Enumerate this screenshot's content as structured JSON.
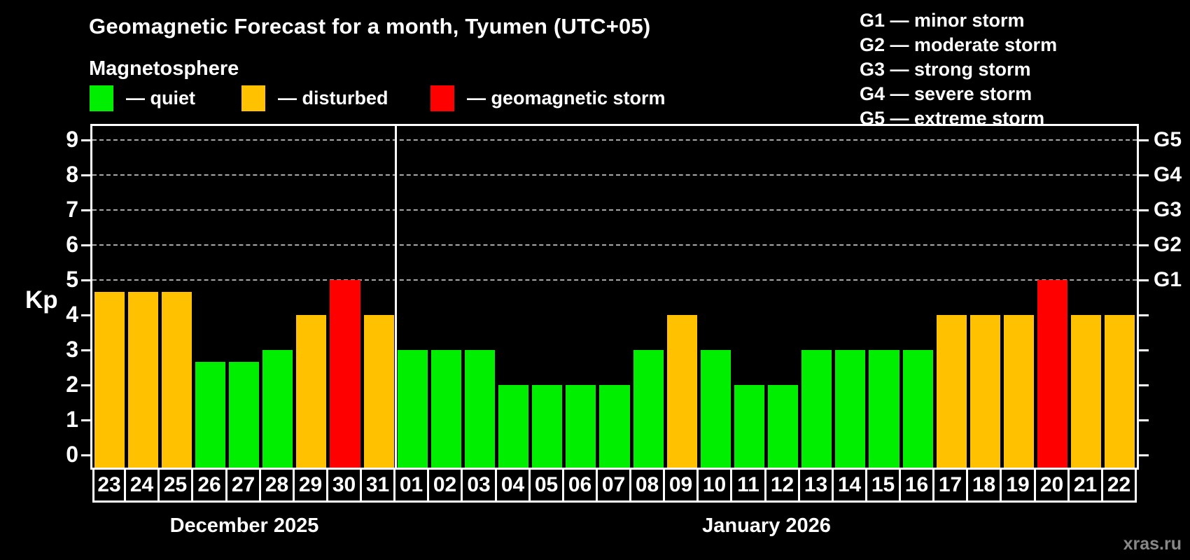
{
  "header": {
    "title": "Geomagnetic Forecast for a month, Tyumen (UTC+05)",
    "subtitle": "Magnetosphere"
  },
  "legend": {
    "items": [
      {
        "key": "quiet",
        "label": "— quiet",
        "color": "#00ee00"
      },
      {
        "key": "disturbed",
        "label": "— disturbed",
        "color": "#ffc100"
      },
      {
        "key": "storm",
        "label": "— geomagnetic storm",
        "color": "#ff0000"
      }
    ]
  },
  "storm_scale_legend": {
    "items": [
      "G1 — minor storm",
      "G2 — moderate storm",
      "G3 — strong storm",
      "G4 — severe storm",
      "G5 — extreme storm"
    ]
  },
  "watermark": "xras.ru",
  "chart_data": {
    "type": "bar",
    "ylabel": "Kp",
    "ylim": [
      0,
      9
    ],
    "y_ticks": [
      0,
      1,
      2,
      3,
      4,
      5,
      6,
      7,
      8,
      9
    ],
    "gridline_levels": [
      5,
      6,
      7,
      8,
      9
    ],
    "grid": "dashed",
    "right_axis": [
      {
        "level": 5,
        "label": "G1"
      },
      {
        "level": 6,
        "label": "G2"
      },
      {
        "level": 7,
        "label": "G3"
      },
      {
        "level": 8,
        "label": "G4"
      },
      {
        "level": 9,
        "label": "G5"
      }
    ],
    "status_colors": {
      "quiet": "#00ee00",
      "disturbed": "#ffc100",
      "storm": "#ff0000"
    },
    "months": [
      {
        "label": "December 2025",
        "days": [
          {
            "day": "23",
            "kp": 4.67,
            "status": "disturbed"
          },
          {
            "day": "24",
            "kp": 4.67,
            "status": "disturbed"
          },
          {
            "day": "25",
            "kp": 4.67,
            "status": "disturbed"
          },
          {
            "day": "26",
            "kp": 2.67,
            "status": "quiet"
          },
          {
            "day": "27",
            "kp": 2.67,
            "status": "quiet"
          },
          {
            "day": "28",
            "kp": 3,
            "status": "quiet"
          },
          {
            "day": "29",
            "kp": 4,
            "status": "disturbed"
          },
          {
            "day": "30",
            "kp": 5,
            "status": "storm"
          },
          {
            "day": "31",
            "kp": 4,
            "status": "disturbed"
          }
        ]
      },
      {
        "label": "January 2026",
        "days": [
          {
            "day": "01",
            "kp": 3,
            "status": "quiet"
          },
          {
            "day": "02",
            "kp": 3,
            "status": "quiet"
          },
          {
            "day": "03",
            "kp": 3,
            "status": "quiet"
          },
          {
            "day": "04",
            "kp": 2,
            "status": "quiet"
          },
          {
            "day": "05",
            "kp": 2,
            "status": "quiet"
          },
          {
            "day": "06",
            "kp": 2,
            "status": "quiet"
          },
          {
            "day": "07",
            "kp": 2,
            "status": "quiet"
          },
          {
            "day": "08",
            "kp": 3,
            "status": "quiet"
          },
          {
            "day": "09",
            "kp": 4,
            "status": "disturbed"
          },
          {
            "day": "10",
            "kp": 3,
            "status": "quiet"
          },
          {
            "day": "11",
            "kp": 2,
            "status": "quiet"
          },
          {
            "day": "12",
            "kp": 2,
            "status": "quiet"
          },
          {
            "day": "13",
            "kp": 3,
            "status": "quiet"
          },
          {
            "day": "14",
            "kp": 3,
            "status": "quiet"
          },
          {
            "day": "15",
            "kp": 3,
            "status": "quiet"
          },
          {
            "day": "16",
            "kp": 3,
            "status": "quiet"
          },
          {
            "day": "17",
            "kp": 4,
            "status": "disturbed"
          },
          {
            "day": "18",
            "kp": 4,
            "status": "disturbed"
          },
          {
            "day": "19",
            "kp": 4,
            "status": "disturbed"
          },
          {
            "day": "20",
            "kp": 5,
            "status": "storm"
          },
          {
            "day": "21",
            "kp": 4,
            "status": "disturbed"
          },
          {
            "day": "22",
            "kp": 4,
            "status": "disturbed"
          }
        ]
      }
    ]
  }
}
